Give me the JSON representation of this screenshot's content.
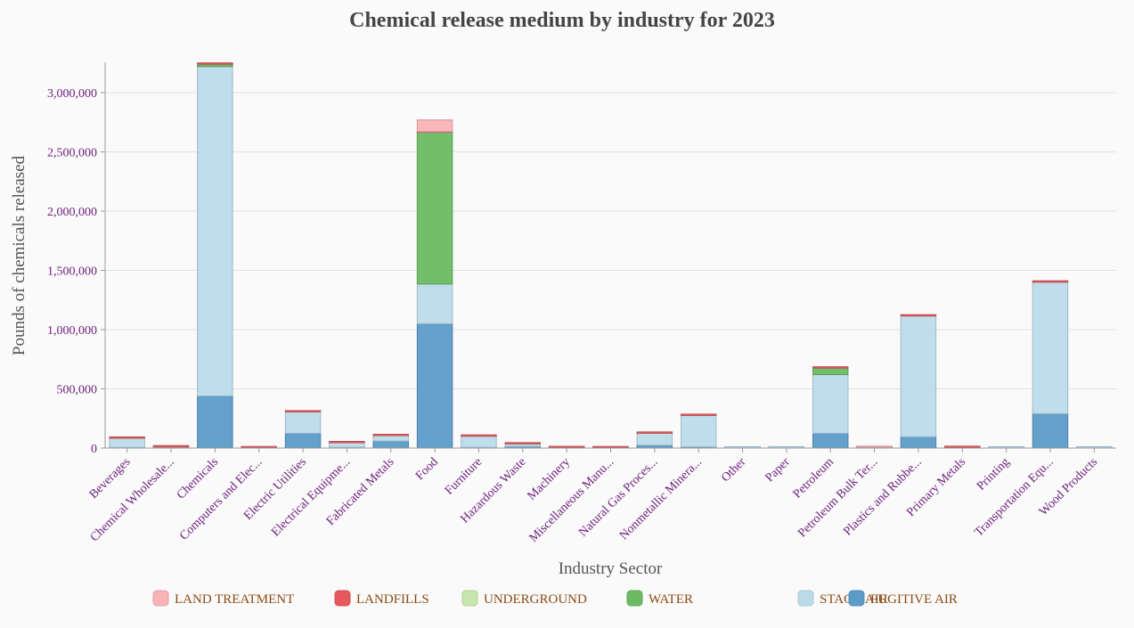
{
  "chart_data": {
    "type": "bar",
    "stacked": true,
    "title": "Chemical release medium by industry for 2023",
    "xlabel": "Industry Sector",
    "ylabel": "Pounds of chemicals released",
    "ylim": [
      0,
      3250000
    ],
    "yticks": [
      0,
      500000,
      1000000,
      1500000,
      2000000,
      2500000,
      3000000
    ],
    "ytick_labels": [
      "0",
      "500,000",
      "1,000,000",
      "1,500,000",
      "2,000,000",
      "2,500,000",
      "3,000,000"
    ],
    "grid": true,
    "legend_position": "bottom",
    "categories": [
      "Beverages",
      "Chemical Wholesale...",
      "Chemicals",
      "Computers and Elec...",
      "Electric Utilities",
      "Electrical Equipme...",
      "Fabricated Metals",
      "Food",
      "Furniture",
      "Hazardous Waste",
      "Machinery",
      "Miscellaneous Manu...",
      "Natural Gas Proces...",
      "Nonmetallic Minera...",
      "Other",
      "Paper",
      "Petroleum",
      "Petroleum Bulk Ter...",
      "Plastics and Rubbe...",
      "Primary Metals",
      "Printing",
      "Transportation Equ...",
      "Wood Products"
    ],
    "series": [
      {
        "name": "FUGITIVE AIR",
        "color": "#5b9bc8",
        "values": [
          3000,
          5000,
          440000,
          1000,
          125000,
          5000,
          60000,
          1050000,
          5000,
          15000,
          2000,
          1000,
          25000,
          10000,
          1000,
          1000,
          125000,
          2000,
          95000,
          3000,
          1000,
          290000,
          1000
        ]
      },
      {
        "name": "STACK AIR",
        "color": "#bcdbe9",
        "values": [
          80000,
          5000,
          2780000,
          1000,
          180000,
          40000,
          45000,
          335000,
          95000,
          20000,
          1000,
          1000,
          100000,
          265000,
          1000,
          1000,
          495000,
          2000,
          1020000,
          1000,
          1000,
          1110000,
          1000
        ]
      },
      {
        "name": "WATER",
        "color": "#6cbb63",
        "values": [
          0,
          0,
          20000,
          0,
          0,
          0,
          0,
          1280000,
          0,
          0,
          0,
          0,
          0,
          0,
          0,
          0,
          55000,
          0,
          0,
          0,
          0,
          0,
          0
        ]
      },
      {
        "name": "UNDERGROUND",
        "color": "#c6e6ad",
        "values": [
          0,
          0,
          0,
          0,
          0,
          0,
          0,
          0,
          0,
          0,
          0,
          0,
          0,
          0,
          0,
          0,
          0,
          0,
          0,
          0,
          0,
          0,
          0
        ]
      },
      {
        "name": "LANDFILLS",
        "color": "#e8595f",
        "values": [
          8000,
          5000,
          5000,
          1000,
          10000,
          5000,
          8000,
          5000,
          5000,
          10000,
          8000,
          1000,
          10000,
          10000,
          0,
          0,
          8000,
          1000,
          10000,
          12000,
          0,
          12000,
          0
        ]
      },
      {
        "name": "LAND TREATMENT",
        "color": "#f9b3b6",
        "values": [
          0,
          0,
          0,
          0,
          0,
          0,
          0,
          100000,
          0,
          0,
          0,
          0,
          0,
          0,
          0,
          0,
          0,
          1000,
          0,
          0,
          0,
          0,
          0
        ]
      }
    ],
    "legend_order": [
      "LAND TREATMENT",
      "LANDFILLS",
      "UNDERGROUND",
      "WATER",
      "STACK AIR",
      "FUGITIVE AIR"
    ]
  },
  "colors": {
    "tick_label": "#6b1d7b",
    "legend_text": "#8b4a14",
    "title": "#444444",
    "axis_title": "#555555"
  }
}
